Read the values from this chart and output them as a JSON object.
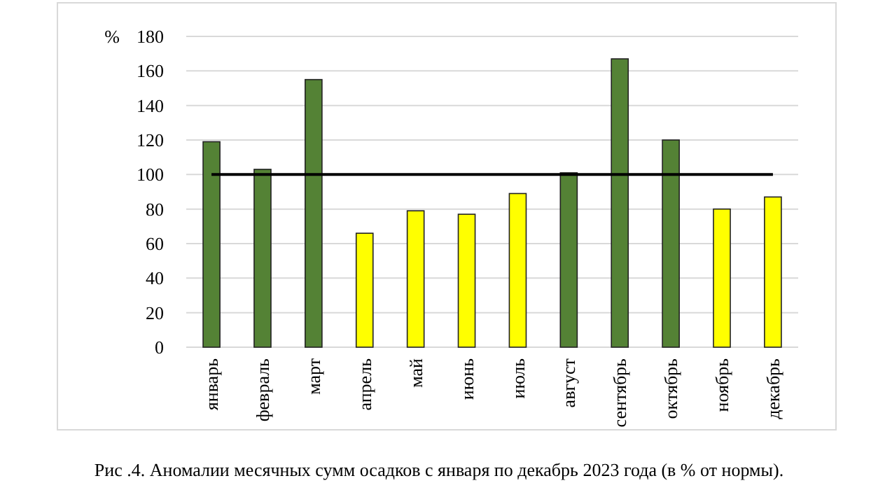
{
  "chart_data": {
    "type": "bar",
    "ylabel": "%",
    "categories": [
      "январь",
      "февраль",
      "март",
      "апрель",
      "май",
      "июнь",
      "июль",
      "август",
      "сентябрь",
      "октябрь",
      "ноябрь",
      "декабрь"
    ],
    "values": [
      119,
      103,
      155,
      66,
      79,
      77,
      89,
      101,
      167,
      120,
      80,
      87
    ],
    "colors": [
      "#548235",
      "#548235",
      "#548235",
      "#ffff00",
      "#ffff00",
      "#ffff00",
      "#ffff00",
      "#548235",
      "#548235",
      "#548235",
      "#ffff00",
      "#ffff00"
    ],
    "ylim": [
      0,
      180
    ],
    "yticks": [
      0,
      20,
      40,
      60,
      80,
      100,
      120,
      140,
      160,
      180
    ],
    "grid": "y",
    "ref_lines": [
      {
        "axis": "y",
        "value": 100,
        "color": "#000000"
      }
    ],
    "annotations": [
      "Рис .4. Аномалии месячных сумм осадков с января по декабрь 2023 года (в % от нормы)."
    ]
  }
}
